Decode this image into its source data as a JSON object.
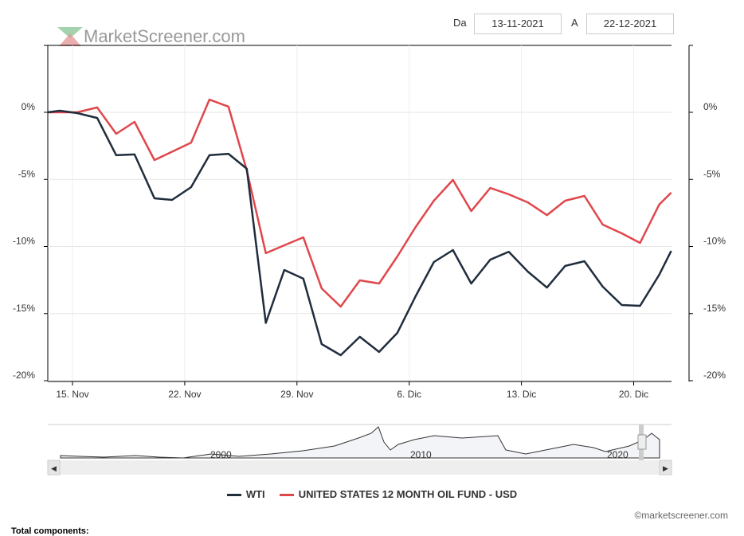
{
  "logo": "MarketScreener.com",
  "range": {
    "from_label": "Da",
    "from": "13-11-2021",
    "to_label": "A",
    "to": "22-12-2021"
  },
  "copyright": "©marketscreener.com",
  "footer_text": "Total components:",
  "navigator": {
    "labels": [
      "2000",
      "2010",
      "2020"
    ]
  },
  "chart_data": {
    "type": "line",
    "title": "",
    "xlabel": "",
    "ylabel": "",
    "x_unit": "days since 13 Nov 2021",
    "xlim": [
      0,
      38.9
    ],
    "ylim": [
      -20,
      4
    ],
    "yticks": [
      0,
      -5,
      -10,
      -15,
      -20
    ],
    "ytick_labels": [
      "0%",
      "-5%",
      "-10%",
      "-15%",
      "-20%"
    ],
    "xticks": [
      1.54,
      8.54,
      15.54,
      22.54,
      29.54,
      36.54
    ],
    "xtick_labels": [
      "15. Nov",
      "22. Nov",
      "29. Nov",
      "6. Dic",
      "13. Dic",
      "20. Dic"
    ],
    "legend_position": "bottom",
    "series": [
      {
        "name": "WTI",
        "color": "#1f2d3d",
        "x": [
          0,
          0.74,
          1.84,
          3.08,
          4.27,
          5.41,
          6.65,
          7.75,
          8.94,
          10.08,
          11.27,
          12.41,
          13.6,
          14.75,
          15.94,
          17.08,
          18.27,
          19.46,
          20.66,
          21.8,
          22.94,
          24.08,
          25.27,
          26.41,
          27.6,
          28.75,
          29.94,
          31.13,
          32.27,
          33.47,
          34.61,
          35.8,
          36.94,
          38.13,
          38.88
        ],
        "y": [
          0,
          0.12,
          -0.06,
          -0.42,
          -3.2,
          -3.14,
          -6.41,
          -6.53,
          -5.58,
          -3.2,
          -3.09,
          -4.21,
          -15.7,
          -11.75,
          -12.4,
          -17.27,
          -18.1,
          -16.73,
          -17.86,
          -16.44,
          -13.71,
          -11.16,
          -10.27,
          -12.76,
          -10.98,
          -10.39,
          -11.87,
          -13.06,
          -11.45,
          -11.1,
          -12.99,
          -14.36,
          -14.42,
          -12.11,
          -10.33
        ]
      },
      {
        "name": "UNITED STATES 12 MONTH OIL FUND - USD",
        "color": "#e0474c",
        "x": [
          0,
          1.84,
          3.08,
          4.27,
          5.41,
          6.65,
          8.94,
          10.08,
          11.27,
          12.41,
          13.6,
          14.75,
          15.94,
          17.08,
          18.27,
          19.46,
          20.66,
          21.8,
          22.94,
          24.08,
          25.27,
          26.41,
          27.6,
          28.75,
          29.94,
          31.13,
          32.27,
          33.47,
          34.61,
          35.8,
          36.94,
          38.13,
          38.88
        ],
        "y": [
          0,
          0,
          0.36,
          -1.6,
          -0.71,
          -3.56,
          -2.26,
          0.95,
          0.42,
          -4.33,
          -10.5,
          -9.91,
          -9.32,
          -13.12,
          -14.48,
          -12.52,
          -12.76,
          -10.74,
          -8.55,
          -6.59,
          -5.04,
          -7.36,
          -5.64,
          -6.11,
          -6.71,
          -7.66,
          -6.59,
          -6.23,
          -8.37,
          -9.02,
          -9.73,
          -6.88,
          -5.99
        ]
      }
    ]
  }
}
